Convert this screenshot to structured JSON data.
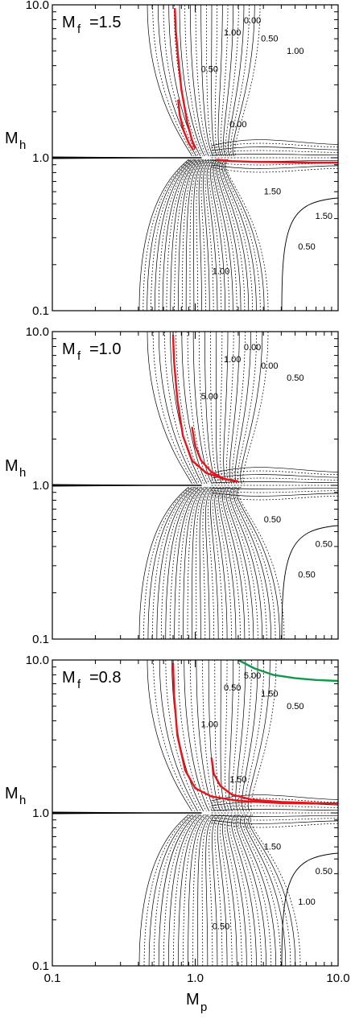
{
  "figure": {
    "xlabel_main": "M",
    "xlabel_sub": "p",
    "ylabel_main": "M",
    "ylabel_sub": "h",
    "x_ticks": [
      "0.1",
      "1.0",
      "10.0"
    ],
    "y_ticks": [
      "0.1",
      "1.0",
      "10.0"
    ]
  },
  "chart_data": [
    {
      "type": "line",
      "panel_label": "M",
      "panel_label_sub": "f",
      "panel_value": "=1.5",
      "x_scale": "log",
      "y_scale": "log",
      "xlim": [
        0.1,
        10.0
      ],
      "ylim": [
        0.1,
        10.0
      ],
      "contour_labels": [
        "0.50",
        "1.00",
        "0.00",
        "0.50",
        "1.00",
        "1.50",
        "1.50",
        "0.50",
        "1.00",
        "0.00"
      ],
      "curves": [
        {
          "color": "#e8141b",
          "x": [
            0.72,
            0.73,
            0.76,
            0.8,
            0.88,
            0.95,
            1.0
          ],
          "y": [
            9.5,
            7.0,
            4.5,
            2.8,
            1.7,
            1.3,
            1.15
          ]
        },
        {
          "color": "#e8141b",
          "x": [
            0.76,
            0.78,
            0.83,
            0.9,
            0.97
          ],
          "y": [
            2.4,
            1.9,
            1.5,
            1.25,
            1.12
          ]
        },
        {
          "color": "#e8141b",
          "x": [
            1.4,
            1.8,
            2.5,
            4.0,
            6.0,
            10.0
          ],
          "y": [
            0.97,
            0.95,
            0.94,
            0.935,
            0.93,
            0.93
          ]
        }
      ]
    },
    {
      "type": "line",
      "panel_label": "M",
      "panel_label_sub": "f",
      "panel_value": "=1.0",
      "x_scale": "log",
      "y_scale": "log",
      "xlim": [
        0.1,
        10.0
      ],
      "ylim": [
        0.1,
        10.0
      ],
      "contour_labels": [
        "5.00",
        "1.00",
        "0.00",
        "0.00",
        "0.50",
        "0.50",
        "0.50",
        "0.50"
      ],
      "curves": [
        {
          "color": "#e8141b",
          "x": [
            0.7,
            0.71,
            0.75,
            0.82,
            0.95,
            1.2,
            1.6,
            2.0
          ],
          "y": [
            9.5,
            6.5,
            3.6,
            2.1,
            1.45,
            1.2,
            1.1,
            1.06
          ]
        },
        {
          "color": "#e8141b",
          "x": [
            0.95,
            1.0,
            1.1,
            1.3,
            1.6,
            2.0
          ],
          "y": [
            2.4,
            1.8,
            1.45,
            1.22,
            1.1,
            1.06
          ]
        }
      ]
    },
    {
      "type": "line",
      "panel_label": "M",
      "panel_label_sub": "f",
      "panel_value": "=0.8",
      "x_scale": "log",
      "y_scale": "log",
      "xlim": [
        0.1,
        10.0
      ],
      "ylim": [
        0.1,
        10.0
      ],
      "contour_labels": [
        "1.00",
        "0.50",
        "5.00",
        "1.50",
        "0.50",
        "0.50",
        "1.50",
        "1.00",
        "0.50",
        "1.50"
      ],
      "curves": [
        {
          "color": "#e8141b",
          "x": [
            0.7,
            0.71,
            0.75,
            0.85,
            1.0,
            1.3,
            2.0,
            4.0,
            10.0
          ],
          "y": [
            9.5,
            6.0,
            3.2,
            1.9,
            1.45,
            1.28,
            1.2,
            1.16,
            1.15
          ]
        },
        {
          "color": "#e8141b",
          "x": [
            1.3,
            1.35,
            1.5,
            1.8,
            2.5,
            4.0,
            7.0,
            10.0
          ],
          "y": [
            2.3,
            1.8,
            1.5,
            1.32,
            1.22,
            1.18,
            1.16,
            1.15
          ]
        },
        {
          "color": "#0e9a48",
          "x": [
            2.0,
            2.6,
            3.5,
            5.0,
            7.0,
            10.0
          ],
          "y": [
            10.0,
            8.8,
            8.0,
            7.6,
            7.4,
            7.3
          ]
        }
      ]
    }
  ]
}
